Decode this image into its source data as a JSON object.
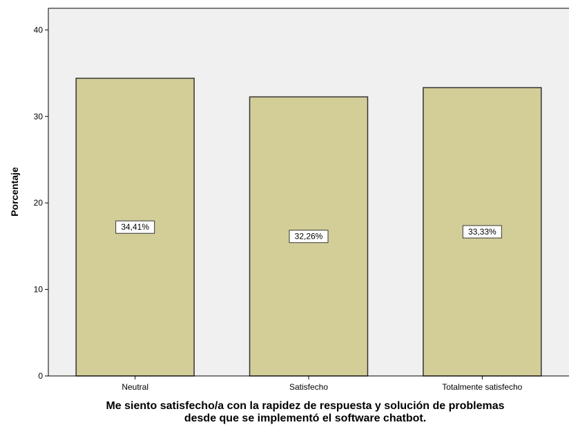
{
  "chart_data": {
    "type": "bar",
    "categories": [
      "Neutral",
      "Satisfecho",
      "Totalmente satisfecho"
    ],
    "values": [
      34.41,
      32.26,
      33.33
    ],
    "data_labels": [
      "34,41%",
      "32,26%",
      "33,33%"
    ],
    "ylabel": "Porcentaje",
    "xlabel_lines": [
      "Me siento satisfecho/a con la rapidez de respuesta y solución de problemas",
      "desde que se implementó el software chatbot."
    ],
    "ylim": [
      0,
      42.5
    ],
    "yticks": [
      0,
      10,
      20,
      30,
      40
    ],
    "grid": false,
    "colors": {
      "plot_background": "#f0f0f0",
      "bar_fill": "#d3ce98",
      "bar_stroke": "#333333"
    }
  }
}
